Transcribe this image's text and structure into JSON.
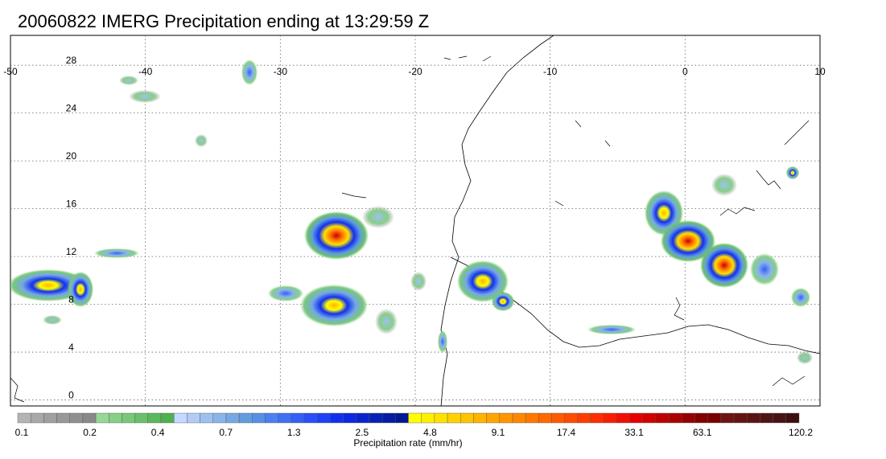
{
  "title": "20060822 IMERG Precipitation ending at 13:29:59 Z",
  "map": {
    "lon_range": [
      -50,
      10
    ],
    "lat_range": [
      -0.5,
      30.5
    ],
    "lon_ticks": [
      "-50",
      "-40",
      "-30",
      "-20",
      "-10",
      "0",
      "10"
    ],
    "lat_ticks": [
      "28",
      "24",
      "20",
      "16",
      "12",
      "8",
      "4",
      "0"
    ],
    "gridlines": "dotted",
    "coastline_color": "#000000"
  },
  "colorbar": {
    "title": "Precipitation rate (mm/hr)",
    "labels": [
      "0.1",
      "0.2",
      "0.4",
      "0.7",
      "1.3",
      "2.5",
      "4.8",
      "9.1",
      "17.4",
      "33.1",
      "63.1",
      "120.2"
    ],
    "colors": [
      "#b4b4b4",
      "#a8a8a8",
      "#a0a0a0",
      "#989898",
      "#909090",
      "#888888",
      "#96d796",
      "#86cf86",
      "#78c878",
      "#6ac06a",
      "#5cb85c",
      "#4eb04e",
      "#c6d8ff",
      "#b2ccf7",
      "#9ec0f0",
      "#8ab4ea",
      "#76a8e4",
      "#629cdd",
      "#5590e6",
      "#4a80f0",
      "#3f70f4",
      "#3460f6",
      "#2950f8",
      "#1e40f8",
      "#1030f0",
      "#0c28e0",
      "#0a24cc",
      "#0820b8",
      "#061ca4",
      "#041890",
      "#ffff00",
      "#fff000",
      "#ffe100",
      "#ffd200",
      "#ffc300",
      "#ffb400",
      "#ffa500",
      "#ff9600",
      "#ff8700",
      "#ff7800",
      "#ff6900",
      "#ff5a00",
      "#ff4b00",
      "#ff3c00",
      "#ff2d00",
      "#fa1e00",
      "#f00f00",
      "#e60000",
      "#d20000",
      "#be0000",
      "#aa0000",
      "#960000",
      "#820000",
      "#780000",
      "#6e1414",
      "#641414",
      "#5a1414",
      "#501414",
      "#461414",
      "#3c1010"
    ]
  }
}
